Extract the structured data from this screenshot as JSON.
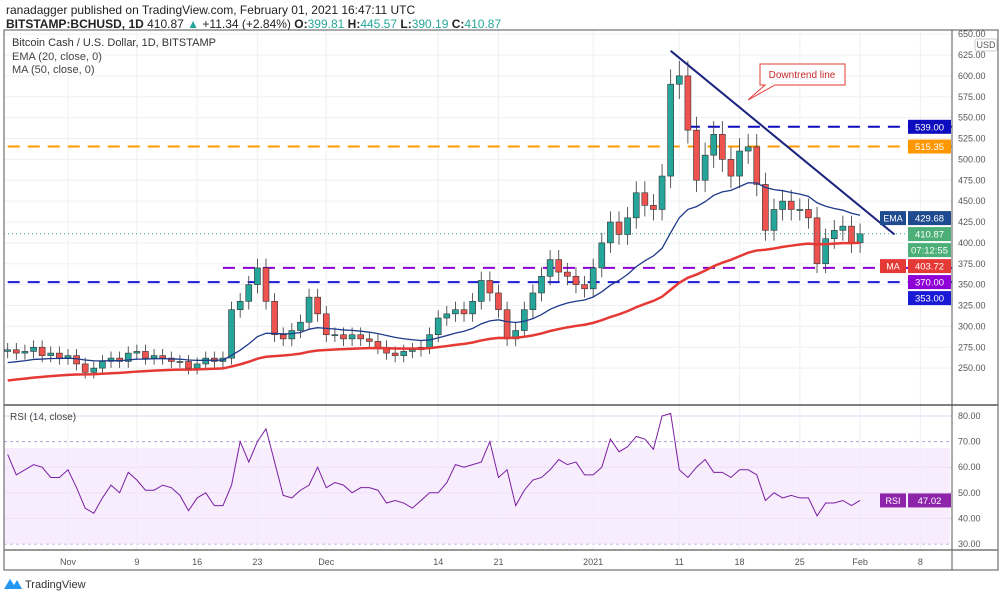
{
  "header": {
    "publisher_line": "ranadagger published on TradingView.com, February 01, 2021 16:47:11 UTC",
    "symbol": "BITSTAMP:BCHUSD, 1D",
    "last": "410.87",
    "change": "+11.34 (+2.84%)",
    "o_label": "O:",
    "o": "399.81",
    "h_label": "H:",
    "h": "445.57",
    "l_label": "L:",
    "l": "390.19",
    "c_label": "C:",
    "c": "410.87"
  },
  "legend": {
    "title": "Bitcoin Cash / U.S. Dollar, 1D, BITSTAMP",
    "ema": "EMA (20, close, 0)",
    "ma": "MA (50, close, 0)",
    "rsi": "RSI (14, close)"
  },
  "annotation": "Downtrend line",
  "footer": {
    "brand": "TradingView"
  },
  "colors": {
    "up": "#26a69a",
    "down": "#ef5350",
    "ema": "#1e3a8a",
    "ma": "#e53935",
    "rsi": "#7b1fa2",
    "trend": "#1a237e"
  },
  "chart_data": {
    "type": "candlestick",
    "title": "Bitcoin Cash / U.S. Dollar, 1D, BITSTAMP",
    "currency": "USD",
    "start_date": "2020-10-25",
    "first_open": 270,
    "closes": [
      272,
      268,
      270,
      275,
      265,
      268,
      262,
      265,
      255,
      245,
      250,
      258,
      262,
      258,
      268,
      270,
      262,
      265,
      262,
      258,
      258,
      250,
      255,
      262,
      258,
      262,
      320,
      330,
      350,
      370,
      330,
      290,
      285,
      295,
      305,
      335,
      315,
      290,
      290,
      285,
      290,
      285,
      282,
      275,
      268,
      265,
      270,
      272,
      275,
      290,
      310,
      315,
      320,
      315,
      330,
      355,
      340,
      320,
      285,
      295,
      320,
      340,
      360,
      380,
      365,
      360,
      350,
      345,
      370,
      400,
      425,
      410,
      430,
      460,
      445,
      440,
      480,
      590,
      600,
      535,
      475,
      505,
      530,
      500,
      480,
      510,
      515,
      470,
      415,
      440,
      450,
      440,
      440,
      430,
      375,
      405,
      415,
      420,
      400,
      410.87
    ],
    "ema_seed": 255,
    "ma_seed": 234,
    "rsi": [
      65,
      57,
      59,
      61,
      60,
      56,
      56,
      59,
      52,
      44,
      42,
      48,
      53,
      50,
      58,
      55,
      51,
      51,
      53,
      52,
      49,
      43,
      48,
      50,
      45,
      45,
      53,
      70,
      62,
      70,
      75,
      62,
      49,
      48,
      51,
      53,
      60,
      52,
      54,
      53,
      50,
      52,
      52,
      51,
      46,
      47,
      46,
      44,
      47,
      50,
      50,
      54,
      61,
      60,
      61,
      62,
      70,
      56,
      59,
      45,
      51,
      55,
      56,
      59,
      63,
      61,
      62,
      57,
      57,
      60,
      71,
      66,
      68,
      72,
      71,
      67,
      80,
      81,
      59,
      56,
      60,
      63,
      58,
      58,
      56,
      59,
      59,
      57,
      47,
      50,
      48,
      49,
      48,
      48,
      41,
      46,
      46,
      47,
      45,
      47.02
    ],
    "price_ticks": [
      "250.00",
      "275.00",
      "300.00",
      "325.00",
      "350.00",
      "375.00",
      "400.00",
      "425.00",
      "450.00",
      "475.00",
      "500.00",
      "525.00",
      "550.00",
      "575.00",
      "600.00",
      "625.00",
      "650.00"
    ],
    "price_tick_values": [
      250,
      275,
      300,
      325,
      350,
      375,
      400,
      425,
      450,
      475,
      500,
      525,
      550,
      575,
      600,
      625,
      650
    ],
    "rsi_ticks": [
      "30.00",
      "40.00",
      "50.00",
      "60.00",
      "70.00",
      "80.00"
    ],
    "rsi_tick_values": [
      30,
      40,
      50,
      60,
      70,
      80
    ],
    "x_ticks": [
      {
        "label": "Nov",
        "day": 7
      },
      {
        "label": "9",
        "day": 15
      },
      {
        "label": "16",
        "day": 22
      },
      {
        "label": "23",
        "day": 29
      },
      {
        "label": "Dec",
        "day": 37
      },
      {
        "label": "14",
        "day": 50
      },
      {
        "label": "21",
        "day": 57
      },
      {
        "label": "2021",
        "day": 68
      },
      {
        "label": "11",
        "day": 78
      },
      {
        "label": "18",
        "day": 85
      },
      {
        "label": "25",
        "day": 92
      },
      {
        "label": "Feb",
        "day": 99
      },
      {
        "label": "8",
        "day": 106
      }
    ],
    "levels": [
      {
        "value": 539.0,
        "label": "539.00",
        "color": "#0d0dbf",
        "from_day": 79
      },
      {
        "value": 515.35,
        "label": "515.35",
        "color": "#ff9800",
        "from_day": 0
      },
      {
        "value": 370.0,
        "label": "370.00",
        "color": "#8e00d6",
        "from_day": 25
      },
      {
        "value": 353.0,
        "label": "353.00",
        "color": "#1a1ad6",
        "from_day": 0
      }
    ],
    "trendline": {
      "from": {
        "day": 77,
        "price": 630
      },
      "to": {
        "day": 103,
        "price": 410
      }
    },
    "badges": {
      "ema_label": "EMA",
      "ema": "429.68",
      "last": "410.87",
      "countdown": "07:12:55",
      "ma_label": "MA",
      "ma": "403.72",
      "rsi_label": "RSI",
      "rsi": "47.02"
    }
  }
}
